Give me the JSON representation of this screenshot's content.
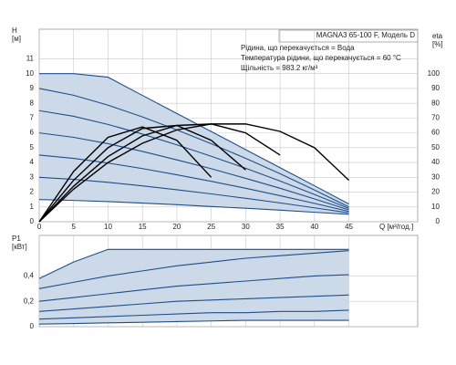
{
  "chart_data": [
    {
      "type": "line",
      "title": "MAGNA3 65-100 F, Модель D",
      "annotations": [
        "Рідина, що перекачується = Вода",
        "Температура рідини, що перекачується = 60 °C",
        "Щільність = 983.2 кг/м³"
      ],
      "ylabel": [
        "H",
        "[м]"
      ],
      "y2label": [
        "eta",
        "[%]"
      ],
      "xlabel": "Q [м³/год.]",
      "xlim": [
        0,
        55
      ],
      "xticks": [
        0,
        5,
        10,
        15,
        20,
        25,
        30,
        35,
        40,
        45
      ],
      "ylim": [
        0,
        13
      ],
      "yticks": [
        0,
        1,
        2,
        3,
        4,
        5,
        6,
        7,
        8,
        9,
        10,
        11
      ],
      "y2lim": [
        0,
        130
      ],
      "y2ticks": [
        0,
        10,
        20,
        30,
        40,
        50,
        60,
        70,
        80,
        90,
        100
      ],
      "grid": true,
      "shade_color": "#ccd9e8",
      "x": [
        0,
        5,
        10,
        15,
        20,
        25,
        30,
        35,
        40,
        45
      ],
      "series": [
        {
          "color": "#1f4e8c",
          "values": [
            10,
            10,
            9.76,
            8.53,
            7.31,
            6.09,
            4.87,
            3.65,
            2.43,
            1.2
          ]
        },
        {
          "color": "#1f4e8c",
          "values": [
            9,
            8.54,
            7.87,
            7.08,
            6.2,
            5.27,
            4.28,
            3.24,
            2.14,
            1.0
          ]
        },
        {
          "color": "#1f4e8c",
          "values": [
            7.5,
            7.12,
            6.57,
            5.92,
            5.19,
            4.42,
            3.61,
            2.75,
            1.84,
            0.9
          ]
        },
        {
          "color": "#1f4e8c",
          "values": [
            6,
            5.7,
            5.27,
            4.75,
            4.18,
            3.58,
            2.93,
            2.26,
            1.54,
            0.8
          ]
        },
        {
          "color": "#1f4e8c",
          "values": [
            4.5,
            4.28,
            3.96,
            3.59,
            3.17,
            2.73,
            2.26,
            1.76,
            1.24,
            0.7
          ]
        },
        {
          "color": "#1f4e8c",
          "values": [
            3,
            2.86,
            2.66,
            2.42,
            2.16,
            1.88,
            1.58,
            1.27,
            0.94,
            0.6
          ]
        },
        {
          "color": "#1f4e8c",
          "values": [
            1.5,
            1.44,
            1.36,
            1.26,
            1.15,
            1.03,
            0.91,
            0.78,
            0.64,
            0.5
          ]
        },
        {
          "color": "#000000",
          "axis": "y2",
          "values": [
            0,
            22,
            40,
            53,
            62,
            66,
            66,
            61,
            50,
            28
          ]
        },
        {
          "color": "#000000",
          "axis": "y2",
          "values": [
            0,
            24,
            44,
            58,
            65,
            66,
            60,
            45,
            null,
            null
          ]
        },
        {
          "color": "#000000",
          "axis": "y2",
          "values": [
            0,
            28,
            50,
            63,
            65,
            55,
            35,
            null,
            null,
            null
          ]
        },
        {
          "color": "#000000",
          "axis": "y2",
          "values": [
            0,
            34,
            57,
            64,
            55,
            30,
            null,
            null,
            null,
            null
          ]
        }
      ]
    },
    {
      "type": "line",
      "ylabel": [
        "P1",
        "[кВт]"
      ],
      "xlim": [
        0,
        55
      ],
      "ylim": [
        0,
        0.72
      ],
      "yticks": [
        0,
        {
          "value": 0.2,
          "label": "0,2"
        },
        {
          "value": 0.4,
          "label": "0,4"
        }
      ],
      "grid": true,
      "shade_color": "#ccd9e8",
      "x": [
        0,
        5,
        10,
        15,
        20,
        25,
        30,
        35,
        40,
        45
      ],
      "series": [
        {
          "color": "#1f4e8c",
          "values": [
            0.38,
            0.51,
            0.61,
            0.61,
            0.61,
            0.61,
            0.61,
            0.61,
            0.61,
            0.61
          ]
        },
        {
          "color": "#1f4e8c",
          "values": [
            0.3,
            0.35,
            0.4,
            0.44,
            0.48,
            0.51,
            0.54,
            0.56,
            0.58,
            0.6
          ]
        },
        {
          "color": "#1f4e8c",
          "values": [
            0.2,
            0.23,
            0.26,
            0.29,
            0.32,
            0.34,
            0.36,
            0.38,
            0.4,
            0.41
          ]
        },
        {
          "color": "#1f4e8c",
          "values": [
            0.12,
            0.14,
            0.16,
            0.18,
            0.2,
            0.21,
            0.22,
            0.23,
            0.24,
            0.25
          ]
        },
        {
          "color": "#1f4e8c",
          "values": [
            0.06,
            0.07,
            0.08,
            0.09,
            0.1,
            0.11,
            0.11,
            0.12,
            0.12,
            0.13
          ]
        },
        {
          "color": "#1f4e8c",
          "values": [
            0.02,
            0.025,
            0.03,
            0.035,
            0.04,
            0.045,
            0.05,
            0.05,
            0.05,
            0.05
          ]
        }
      ]
    }
  ]
}
